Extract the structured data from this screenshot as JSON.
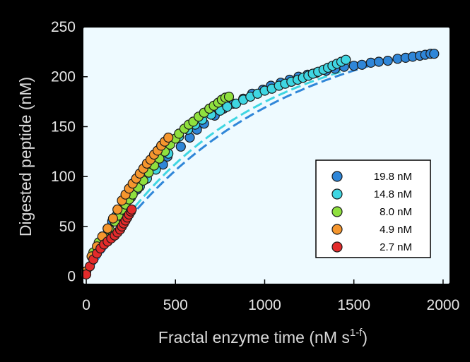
{
  "chart_data": {
    "type": "scatter",
    "title": "",
    "xlabel": "Fractal enzyme time (nM s",
    "xlabel_sup": "1-f",
    "xlabel_end": ")",
    "ylabel": "Digested peptide (nM)",
    "xlim": [
      -20,
      2040
    ],
    "ylim": [
      -8,
      250
    ],
    "xticks": [
      0,
      500,
      1000,
      1500,
      2000
    ],
    "yticks": [
      0,
      50,
      100,
      150,
      200,
      250
    ],
    "plot_background": "#eefaff",
    "legend_position": "lower-right",
    "series": [
      {
        "name": "19.8 nM",
        "color": "#2f86d8",
        "x": [
          0,
          45,
          95,
          145,
          195,
          240,
          285,
          330,
          430,
          455,
          530,
          580,
          620,
          660,
          720,
          770,
          825,
          880,
          930,
          990,
          1035,
          1090,
          1140,
          1190,
          1240,
          1290,
          1345,
          1395,
          1445,
          1500,
          1545,
          1595,
          1640,
          1690,
          1745,
          1790,
          1830,
          1870,
          1900,
          1930,
          1950
        ],
        "y": [
          5,
          24,
          40,
          55,
          67,
          78,
          87,
          97,
          112,
          120,
          130,
          139,
          147,
          153,
          161,
          168,
          173,
          178,
          183,
          187,
          191,
          194,
          197,
          200,
          202,
          204,
          206,
          208,
          210,
          211,
          212,
          214,
          215,
          216,
          218,
          219,
          220,
          221,
          222,
          223,
          223
        ]
      },
      {
        "name": "14.8 nM",
        "color": "#3fd6e2",
        "x": [
          0,
          40,
          80,
          120,
          165,
          210,
          250,
          300,
          340,
          390,
          460,
          520,
          570,
          610,
          650,
          700,
          750,
          790,
          840,
          880,
          920,
          960,
          1000,
          1040,
          1080,
          1115,
          1150,
          1185,
          1215,
          1245,
          1270,
          1300,
          1330,
          1355,
          1380,
          1405,
          1430,
          1455
        ],
        "y": [
          5,
          22,
          35,
          48,
          60,
          70,
          79,
          90,
          98,
          107,
          123,
          140,
          147,
          152,
          157,
          162,
          166,
          170,
          173,
          177,
          180,
          183,
          186,
          188,
          191,
          193,
          195,
          197,
          199,
          201,
          203,
          205,
          207,
          209,
          211,
          213,
          215,
          217
        ]
      },
      {
        "name": "8.0 nM",
        "color": "#8fe03e",
        "x": [
          0,
          40,
          70,
          100,
          130,
          160,
          180,
          200,
          220,
          240,
          260,
          290,
          320,
          350,
          380,
          410,
          440,
          470,
          500,
          520,
          550,
          575,
          600,
          630,
          660,
          690,
          715,
          740,
          760,
          780,
          800
        ],
        "y": [
          5,
          24,
          34,
          40,
          47,
          55,
          61,
          67,
          72,
          77,
          82,
          89,
          96,
          104,
          111,
          118,
          125,
          132,
          138,
          143,
          148,
          152,
          155,
          160,
          164,
          168,
          171,
          174,
          177,
          179,
          180
        ]
      },
      {
        "name": "4.9 nM",
        "color": "#f5962e",
        "x": [
          0,
          30,
          60,
          90,
          120,
          150,
          175,
          200,
          220,
          240,
          260,
          280,
          300,
          320,
          340,
          360,
          380,
          400,
          420,
          440,
          460
        ],
        "y": [
          5,
          20,
          30,
          40,
          48,
          58,
          67,
          76,
          82,
          88,
          93,
          98,
          103,
          108,
          113,
          117,
          122,
          126,
          131,
          135,
          139
        ]
      },
      {
        "name": "2.7 nM",
        "color": "#e32b2b",
        "x": [
          0,
          20,
          40,
          60,
          80,
          100,
          120,
          140,
          160,
          175,
          190,
          200,
          210,
          220,
          230,
          240,
          250,
          255
        ],
        "y": [
          2,
          10,
          17,
          23,
          28,
          32,
          35,
          38,
          41,
          44,
          47,
          50,
          53,
          56,
          59,
          62,
          65,
          67
        ]
      }
    ],
    "fits": [
      {
        "name": "19.8 nM fit",
        "color": "#2f86d8",
        "asymptote": 260,
        "rate": 0.00105,
        "xmax": 1950
      },
      {
        "name": "14.8 nM fit",
        "color": "#3fd6e2",
        "asymptote": 250,
        "rate": 0.0012,
        "xmax": 1460
      }
    ]
  }
}
